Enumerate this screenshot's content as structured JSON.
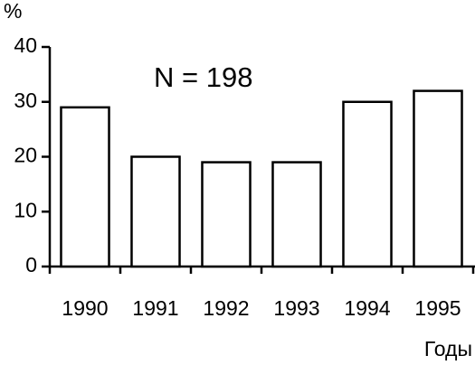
{
  "chart_data": {
    "type": "bar",
    "y_label": "%",
    "x_label": "Годы",
    "annotation": "N = 198",
    "categories": [
      "1990",
      "1991",
      "1992",
      "1993",
      "1994",
      "1995"
    ],
    "values": [
      29,
      20,
      19,
      19,
      30,
      32
    ],
    "color": "#ffffff",
    "ylim": [
      0,
      40
    ],
    "yticks": [
      0,
      10,
      20,
      30,
      40
    ]
  }
}
